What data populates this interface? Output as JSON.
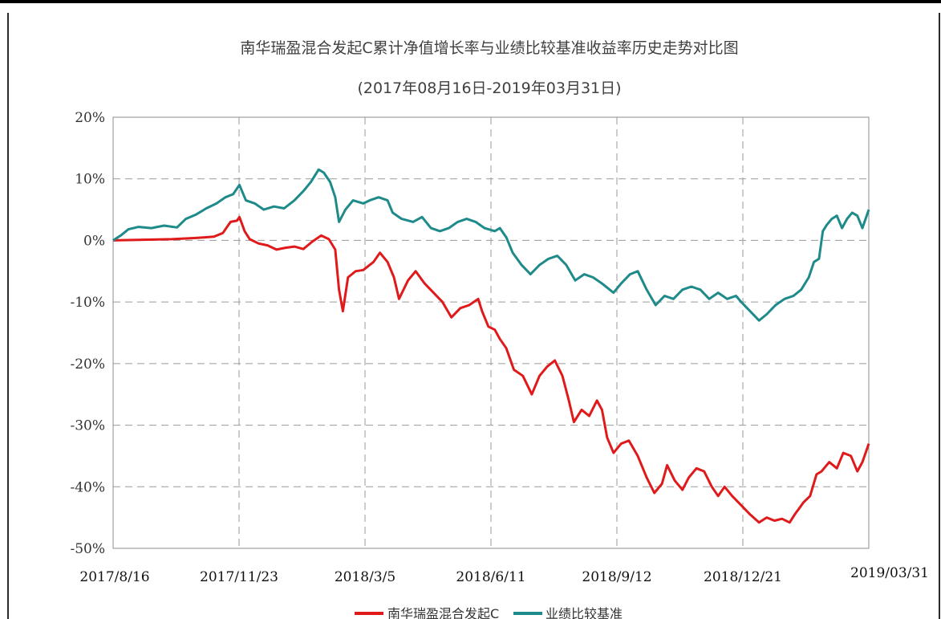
{
  "chart_data": {
    "type": "line",
    "title": "南华瑞盈混合发起C累计净值增长率与业绩比较基准收益率历史走势对比图",
    "subtitle": "(2017年08月16日-2019年03月31日)",
    "x_tick_labels": [
      "2017/8/16",
      "2017/11/23",
      "2018/3/5",
      "2018/6/11",
      "2018/9/12",
      "2018/12/21",
      "2019/03/31"
    ],
    "y_tick_labels": [
      "20%",
      "10%",
      "0%",
      "-10%",
      "-20%",
      "-30%",
      "-40%",
      "-50%"
    ],
    "ylim": [
      -50,
      20
    ],
    "xlim": [
      "2017-08-16",
      "2019-03-31"
    ],
    "grid": true,
    "legend_position": "bottom",
    "series": [
      {
        "name": "南华瑞盈混合发起C",
        "color": "#e01a1a",
        "points": [
          [
            "2017-08-16",
            0
          ],
          [
            "2017-09-05",
            0.1
          ],
          [
            "2017-10-01",
            0.2
          ],
          [
            "2017-10-20",
            0.4
          ],
          [
            "2017-11-03",
            0.6
          ],
          [
            "2017-11-10",
            1.2
          ],
          [
            "2017-11-16",
            3.0
          ],
          [
            "2017-11-21",
            3.2
          ],
          [
            "2017-11-23",
            3.8
          ],
          [
            "2017-11-27",
            1.5
          ],
          [
            "2017-12-01",
            0.2
          ],
          [
            "2017-12-08",
            -0.5
          ],
          [
            "2017-12-15",
            -0.8
          ],
          [
            "2017-12-22",
            -1.5
          ],
          [
            "2017-12-29",
            -1.2
          ],
          [
            "2018-01-05",
            -1.0
          ],
          [
            "2018-01-12",
            -1.4
          ],
          [
            "2018-01-19",
            -0.2
          ],
          [
            "2018-01-26",
            0.8
          ],
          [
            "2018-02-01",
            0.2
          ],
          [
            "2018-02-06",
            -1.5
          ],
          [
            "2018-02-09",
            -8.0
          ],
          [
            "2018-02-12",
            -11.5
          ],
          [
            "2018-02-16",
            -6.0
          ],
          [
            "2018-02-22",
            -5.0
          ],
          [
            "2018-02-28",
            -4.8
          ],
          [
            "2018-03-05",
            -4.0
          ],
          [
            "2018-03-08",
            -3.5
          ],
          [
            "2018-03-13",
            -2.0
          ],
          [
            "2018-03-19",
            -3.5
          ],
          [
            "2018-03-24",
            -6.0
          ],
          [
            "2018-03-28",
            -9.5
          ],
          [
            "2018-04-04",
            -6.5
          ],
          [
            "2018-04-10",
            -5.0
          ],
          [
            "2018-04-17",
            -7.0
          ],
          [
            "2018-04-24",
            -8.5
          ],
          [
            "2018-05-01",
            -10.0
          ],
          [
            "2018-05-08",
            -12.5
          ],
          [
            "2018-05-15",
            -11.0
          ],
          [
            "2018-05-22",
            -10.5
          ],
          [
            "2018-05-29",
            -9.5
          ],
          [
            "2018-06-01",
            -11.5
          ],
          [
            "2018-06-06",
            -14.0
          ],
          [
            "2018-06-11",
            -14.5
          ],
          [
            "2018-06-15",
            -16.0
          ],
          [
            "2018-06-20",
            -17.5
          ],
          [
            "2018-06-26",
            -21.0
          ],
          [
            "2018-07-03",
            -22.0
          ],
          [
            "2018-07-10",
            -25.0
          ],
          [
            "2018-07-16",
            -22.0
          ],
          [
            "2018-07-22",
            -20.5
          ],
          [
            "2018-07-28",
            -19.5
          ],
          [
            "2018-08-03",
            -22.0
          ],
          [
            "2018-08-08",
            -26.0
          ],
          [
            "2018-08-12",
            -29.5
          ],
          [
            "2018-08-18",
            -27.5
          ],
          [
            "2018-08-24",
            -28.5
          ],
          [
            "2018-08-30",
            -26.0
          ],
          [
            "2018-09-03",
            -27.5
          ],
          [
            "2018-09-07",
            -32.0
          ],
          [
            "2018-09-12",
            -34.5
          ],
          [
            "2018-09-18",
            -33.0
          ],
          [
            "2018-09-24",
            -32.5
          ],
          [
            "2018-10-01",
            -35.0
          ],
          [
            "2018-10-08",
            -38.5
          ],
          [
            "2018-10-14",
            -41.0
          ],
          [
            "2018-10-20",
            -39.5
          ],
          [
            "2018-10-24",
            -36.5
          ],
          [
            "2018-10-30",
            -39.0
          ],
          [
            "2018-11-05",
            -40.5
          ],
          [
            "2018-11-10",
            -38.5
          ],
          [
            "2018-11-16",
            -37.0
          ],
          [
            "2018-11-22",
            -37.5
          ],
          [
            "2018-11-28",
            -40.0
          ],
          [
            "2018-12-03",
            -41.5
          ],
          [
            "2018-12-08",
            -40.0
          ],
          [
            "2018-12-14",
            -41.5
          ],
          [
            "2018-12-21",
            -43.0
          ],
          [
            "2018-12-28",
            -44.5
          ],
          [
            "2019-01-04",
            -45.8
          ],
          [
            "2019-01-10",
            -45.0
          ],
          [
            "2019-01-16",
            -45.5
          ],
          [
            "2019-01-22",
            -45.2
          ],
          [
            "2019-01-28",
            -45.8
          ],
          [
            "2019-02-01",
            -44.5
          ],
          [
            "2019-02-08",
            -42.5
          ],
          [
            "2019-02-13",
            -41.5
          ],
          [
            "2019-02-18",
            -38.0
          ],
          [
            "2019-02-22",
            -37.5
          ],
          [
            "2019-02-28",
            -36.0
          ],
          [
            "2019-03-06",
            -37.0
          ],
          [
            "2019-03-11",
            -34.5
          ],
          [
            "2019-03-17",
            -35.0
          ],
          [
            "2019-03-22",
            -37.5
          ],
          [
            "2019-03-26",
            -36.0
          ],
          [
            "2019-03-31",
            -33.0
          ]
        ]
      },
      {
        "name": "业绩比较基准",
        "color": "#1f8a8a",
        "points": [
          [
            "2017-08-16",
            0
          ],
          [
            "2017-08-22",
            0.8
          ],
          [
            "2017-08-28",
            1.8
          ],
          [
            "2017-09-05",
            2.2
          ],
          [
            "2017-09-15",
            2.0
          ],
          [
            "2017-09-25",
            2.4
          ],
          [
            "2017-10-05",
            2.1
          ],
          [
            "2017-10-12",
            3.5
          ],
          [
            "2017-10-20",
            4.2
          ],
          [
            "2017-10-28",
            5.2
          ],
          [
            "2017-11-05",
            6.0
          ],
          [
            "2017-11-12",
            7.0
          ],
          [
            "2017-11-18",
            7.5
          ],
          [
            "2017-11-23",
            9.0
          ],
          [
            "2017-11-28",
            6.5
          ],
          [
            "2017-12-05",
            6.0
          ],
          [
            "2017-12-12",
            5.0
          ],
          [
            "2017-12-20",
            5.5
          ],
          [
            "2017-12-28",
            5.2
          ],
          [
            "2018-01-05",
            6.5
          ],
          [
            "2018-01-12",
            8.0
          ],
          [
            "2018-01-18",
            9.5
          ],
          [
            "2018-01-24",
            11.5
          ],
          [
            "2018-01-28",
            11.0
          ],
          [
            "2018-02-02",
            9.5
          ],
          [
            "2018-02-06",
            7.0
          ],
          [
            "2018-02-09",
            3.0
          ],
          [
            "2018-02-14",
            5.0
          ],
          [
            "2018-02-20",
            6.5
          ],
          [
            "2018-02-28",
            6.0
          ],
          [
            "2018-03-05",
            6.5
          ],
          [
            "2018-03-12",
            7.0
          ],
          [
            "2018-03-19",
            6.5
          ],
          [
            "2018-03-23",
            4.5
          ],
          [
            "2018-03-30",
            3.5
          ],
          [
            "2018-04-08",
            3.0
          ],
          [
            "2018-04-15",
            3.8
          ],
          [
            "2018-04-22",
            2.0
          ],
          [
            "2018-04-29",
            1.5
          ],
          [
            "2018-05-06",
            2.0
          ],
          [
            "2018-05-13",
            3.0
          ],
          [
            "2018-05-20",
            3.5
          ],
          [
            "2018-05-27",
            3.0
          ],
          [
            "2018-06-03",
            2.0
          ],
          [
            "2018-06-11",
            1.5
          ],
          [
            "2018-06-15",
            2.0
          ],
          [
            "2018-06-20",
            0.5
          ],
          [
            "2018-06-25",
            -2.0
          ],
          [
            "2018-07-02",
            -4.0
          ],
          [
            "2018-07-09",
            -5.5
          ],
          [
            "2018-07-16",
            -4.0
          ],
          [
            "2018-07-23",
            -3.0
          ],
          [
            "2018-07-30",
            -2.5
          ],
          [
            "2018-08-06",
            -4.0
          ],
          [
            "2018-08-13",
            -6.5
          ],
          [
            "2018-08-20",
            -5.5
          ],
          [
            "2018-08-27",
            -6.0
          ],
          [
            "2018-09-03",
            -7.0
          ],
          [
            "2018-09-12",
            -8.5
          ],
          [
            "2018-09-18",
            -7.0
          ],
          [
            "2018-09-25",
            -5.5
          ],
          [
            "2018-10-01",
            -5.0
          ],
          [
            "2018-10-08",
            -8.0
          ],
          [
            "2018-10-15",
            -10.5
          ],
          [
            "2018-10-22",
            -9.0
          ],
          [
            "2018-10-29",
            -9.5
          ],
          [
            "2018-11-05",
            -8.0
          ],
          [
            "2018-11-12",
            -7.5
          ],
          [
            "2018-11-19",
            -8.0
          ],
          [
            "2018-11-26",
            -9.5
          ],
          [
            "2018-12-03",
            -8.5
          ],
          [
            "2018-12-10",
            -9.5
          ],
          [
            "2018-12-17",
            -9.0
          ],
          [
            "2018-12-21",
            -10.0
          ],
          [
            "2018-12-28",
            -11.5
          ],
          [
            "2019-01-04",
            -13.0
          ],
          [
            "2019-01-10",
            -12.0
          ],
          [
            "2019-01-17",
            -10.5
          ],
          [
            "2019-01-24",
            -9.5
          ],
          [
            "2019-01-31",
            -9.0
          ],
          [
            "2019-02-06",
            -8.0
          ],
          [
            "2019-02-12",
            -6.0
          ],
          [
            "2019-02-16",
            -3.5
          ],
          [
            "2019-02-20",
            -3.0
          ],
          [
            "2019-02-23",
            1.5
          ],
          [
            "2019-02-26",
            2.5
          ],
          [
            "2019-03-02",
            3.5
          ],
          [
            "2019-03-06",
            4.0
          ],
          [
            "2019-03-10",
            2.0
          ],
          [
            "2019-03-14",
            3.5
          ],
          [
            "2019-03-18",
            4.5
          ],
          [
            "2019-03-22",
            4.0
          ],
          [
            "2019-03-26",
            2.0
          ],
          [
            "2019-03-31",
            5.0
          ]
        ]
      }
    ]
  }
}
